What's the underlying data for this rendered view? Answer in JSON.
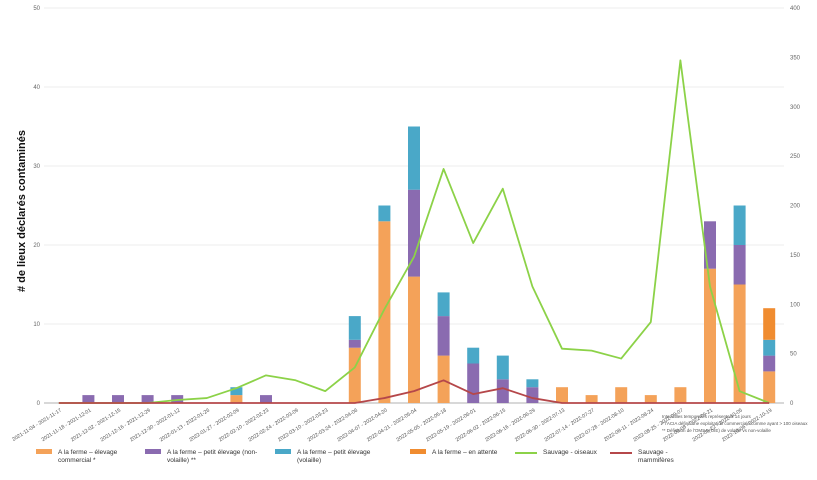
{
  "chart_data": {
    "type": "bar+line",
    "ylabel": "# de lieux déclarés contaminés",
    "y_left": {
      "min": 0,
      "max": 50,
      "ticks": [
        0,
        10,
        20,
        30,
        40,
        50
      ]
    },
    "y_right": {
      "min": 0,
      "max": 400,
      "ticks": [
        0,
        50,
        100,
        150,
        200,
        250,
        300,
        350,
        400
      ]
    },
    "categories": [
      "2021-11-04 - 2021-11-17",
      "2021-11-18 - 2021-12-01",
      "2021-12-02 - 2021-12-15",
      "2021-12-16 - 2021-12-29",
      "2021-12-30 - 2022-01-12",
      "2022-01-13 - 2022-01-26",
      "2022-01-27 - 2022-02-09",
      "2022-02-10 - 2022-02-23",
      "2022-02-24 - 2022-03-09",
      "2022-03-10 - 2022-03-23",
      "2022-03-24 - 2022-04-06",
      "2022-04-07 - 2022-04-20",
      "2022-04-21 - 2022-05-04",
      "2022-05-05 - 2022-05-18",
      "2022-05-19 - 2022-06-01",
      "2022-06-02 - 2022-06-15",
      "2022-06-16 - 2022-06-29",
      "2022-06-30 - 2022-07-13",
      "2022-07-14 - 2022-07-27",
      "2022-07-28 - 2022-08-10",
      "2022-08-11 - 2022-08-24",
      "2022-08-25 - 2022-09-07",
      "2022-09-08 - 2022-09-21",
      "2022-09-22 - 2022-10-05",
      "2022-10-06 - 2022-10-19"
    ],
    "bar_series": [
      {
        "name": "A la ferme – élevage commercial *",
        "color": "#f4a259",
        "values": [
          0,
          0,
          0,
          0,
          0,
          0,
          1,
          0,
          0,
          0,
          7,
          23,
          16,
          6,
          0,
          0,
          0,
          2,
          1,
          2,
          1,
          2,
          17,
          15,
          4
        ]
      },
      {
        "name": "A la ferme – petit élevage (non-volaille) **",
        "color": "#8a6bb0",
        "values": [
          0,
          1,
          1,
          1,
          1,
          0,
          0,
          1,
          0,
          0,
          1,
          0,
          11,
          5,
          5,
          3,
          2,
          0,
          0,
          0,
          0,
          0,
          6,
          5,
          2
        ]
      },
      {
        "name": "A la ferme – petit élevage (volaille)",
        "color": "#4aa8c8",
        "values": [
          0,
          0,
          0,
          0,
          0,
          0,
          1,
          0,
          0,
          0,
          3,
          2,
          8,
          3,
          2,
          3,
          1,
          0,
          0,
          0,
          0,
          0,
          0,
          5,
          2
        ]
      },
      {
        "name": "A la ferme – en attente",
        "color": "#f08c30",
        "values": [
          0,
          0,
          0,
          0,
          0,
          0,
          0,
          0,
          0,
          0,
          0,
          0,
          0,
          0,
          0,
          0,
          0,
          0,
          0,
          0,
          0,
          0,
          0,
          0,
          4
        ]
      }
    ],
    "line_series": [
      {
        "name": "Sauvage - oiseaux",
        "color": "#8cd248",
        "axis": "right",
        "values": [
          0,
          0,
          0,
          0,
          3,
          5,
          15,
          28,
          23,
          12,
          36,
          95,
          148,
          237,
          162,
          217,
          118,
          55,
          53,
          45,
          82,
          347,
          118,
          12,
          0
        ]
      },
      {
        "name": "Sauvage - mammifères",
        "color": "#b5474a",
        "axis": "right",
        "values": [
          0,
          0,
          0,
          0,
          0,
          0,
          0,
          0,
          0,
          0,
          0,
          5,
          12,
          23,
          9,
          15,
          5,
          0,
          0,
          0,
          0,
          0,
          0,
          0,
          0
        ]
      }
    ],
    "notes": [
      "Intervalles temporelles représentant 14 jours",
      "* l'ACIA définit une exploitation commerciale comme ayant > 100 oiseaux",
      "** Définition de l'OMSA (OIE) de volaille vs non-volaille"
    ]
  }
}
